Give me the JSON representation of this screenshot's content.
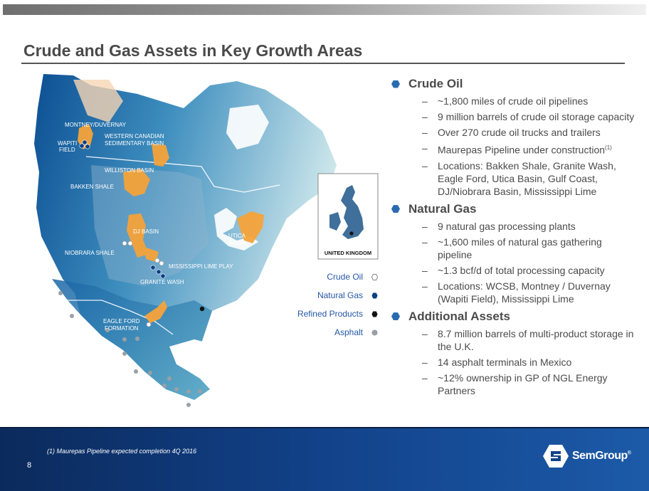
{
  "title": "Crude and Gas Assets in Key Growth Areas",
  "colors": {
    "accent_blue": "#2a6bb0",
    "basin_orange": "#f5a33a",
    "footer_blue": "#12428a",
    "asphalt_gray": "#9aa0a6"
  },
  "map": {
    "labels": {
      "montney": "MONTNEY/DUVERNAY",
      "wapiti_1": "WAPITI",
      "wapiti_2": "FIELD",
      "wcsb_1": "WESTERN CANADIAN",
      "wcsb_2": "SEDIMENTARY BASIN",
      "williston": "WILLISTON BASIN",
      "bakken": "BAKKEN SHALE",
      "dj": "DJ BASIN",
      "niobrara": "NIOBRARA SHALE",
      "utica_1": "UTICA",
      "utica_2": "BASIN",
      "mississippi": "MISSISSIPPI LIME PLAY",
      "granite": "GRANITE WASH",
      "eagle_1": "EAGLE FORD",
      "eagle_2": "FORMATION",
      "uk": "UNITED KINGDOM"
    }
  },
  "legend": [
    {
      "label": "Crude Oil",
      "icon": "hexagon-outline-icon"
    },
    {
      "label": "Natural Gas",
      "icon": "hexagon-blue-icon"
    },
    {
      "label": "Refined Products",
      "icon": "hexagon-black-icon"
    },
    {
      "label": "Asphalt",
      "icon": "circle-gray-icon"
    }
  ],
  "sections": {
    "crude": {
      "heading": "Crude Oil",
      "items": [
        "~1,800 miles of crude oil pipelines",
        "9 million barrels of  crude oil storage capacity",
        "Over 270 crude oil trucks and trailers",
        "Maurepas Pipeline under construction",
        "Locations: Bakken Shale, Granite Wash, Eagle Ford, Utica Basin, Gulf Coast, DJ/Niobrara Basin, Mississippi Lime"
      ],
      "footnote_marker": "(1)"
    },
    "gas": {
      "heading": "Natural Gas",
      "items": [
        "9 natural gas processing plants",
        "~1,600 miles of natural gas gathering pipeline",
        "~1.3 bcf/d of total processing capacity",
        "Locations: WCSB, Montney / Duvernay (Wapiti Field), Mississippi Lime"
      ]
    },
    "additional": {
      "heading": "Additional Assets",
      "items": [
        "8.7 million barrels of multi-product storage in the U.K.",
        "14 asphalt terminals in Mexico",
        "~12% ownership in GP of NGL Energy Partners"
      ]
    }
  },
  "dash": "–",
  "footer": {
    "footnote": "(1) Maurepas Pipeline expected completion 4Q 2016",
    "page_number": "8",
    "logo_text": "SemGroup",
    "logo_mark": "®"
  }
}
